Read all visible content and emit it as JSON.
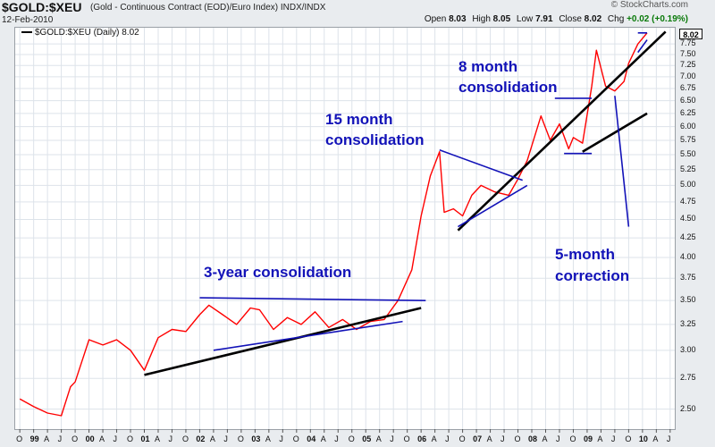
{
  "header": {
    "symbol": "$GOLD:$XEU",
    "description": "(Gold - Continuous Contract (EOD)/Euro Index)  INDX/INDX",
    "date": "12-Feb-2010",
    "brand": "© StockCharts.com",
    "open_label": "Open",
    "open": "8.03",
    "high_label": "High",
    "high": "8.05",
    "low_label": "Low",
    "low": "7.91",
    "close_label": "Close",
    "close": "8.02",
    "chg_label": "Chg",
    "chg": "+0.02 (+0.19%)"
  },
  "legend": {
    "label": "$GOLD:$XEU (Daily) 8.02"
  },
  "last_value_label": "8.02",
  "annotations": {
    "three_year": "3-year consolidation",
    "fifteen_month_1": "15 month",
    "fifteen_month_2": "consolidation",
    "eight_month_1": "8 month",
    "eight_month_2": "consolidation",
    "five_month_1": "5-month",
    "five_month_2": "correction"
  },
  "colors": {
    "price_line": "#ff0000",
    "trend_black": "#000000",
    "trend_blue": "#1212b8",
    "grid": "#dde3ea"
  },
  "chart_data": {
    "type": "line",
    "title": "$GOLD:$XEU (Daily)",
    "y_scale": "log",
    "ylim": [
      2.35,
      8.15
    ],
    "y_ticks": [
      "2.50",
      "2.75",
      "3.00",
      "3.25",
      "3.50",
      "3.75",
      "4.00",
      "4.25",
      "4.50",
      "4.75",
      "5.00",
      "5.25",
      "5.50",
      "5.75",
      "6.00",
      "6.25",
      "6.50",
      "6.75",
      "7.00",
      "7.25",
      "7.50",
      "7.75",
      "8.02"
    ],
    "x_ticks": [
      "O",
      "99",
      "A",
      "J",
      "O",
      "00",
      "A",
      "J",
      "O",
      "01",
      "A",
      "J",
      "O",
      "02",
      "A",
      "J",
      "O",
      "03",
      "A",
      "J",
      "O",
      "04",
      "A",
      "J",
      "O",
      "05",
      "A",
      "J",
      "O",
      "06",
      "A",
      "J",
      "O",
      "07",
      "A",
      "J",
      "O",
      "08",
      "A",
      "J",
      "O",
      "09",
      "A",
      "J",
      "O",
      "10",
      "A",
      "J"
    ],
    "grid": true,
    "series": [
      {
        "name": "$GOLD:$XEU (Daily) 8.02",
        "x": [
          "1998-10",
          "1999-01",
          "1999-04",
          "1999-07",
          "1999-09",
          "1999-10",
          "2000-01",
          "2000-04",
          "2000-07",
          "2000-10",
          "2001-01",
          "2001-04",
          "2001-07",
          "2001-10",
          "2002-01",
          "2002-03",
          "2002-06",
          "2002-09",
          "2002-12",
          "2003-02",
          "2003-05",
          "2003-08",
          "2003-11",
          "2004-02",
          "2004-05",
          "2004-08",
          "2004-11",
          "2005-02",
          "2005-05",
          "2005-08",
          "2005-11",
          "2006-01",
          "2006-03",
          "2006-05",
          "2006-06",
          "2006-08",
          "2006-10",
          "2006-12",
          "2007-02",
          "2007-05",
          "2007-08",
          "2007-10",
          "2007-12",
          "2008-03",
          "2008-05",
          "2008-07",
          "2008-09",
          "2008-10",
          "2008-12",
          "2009-02",
          "2009-03",
          "2009-05",
          "2009-07",
          "2009-09",
          "2009-10",
          "2009-12",
          "2010-02"
        ],
        "y": [
          2.58,
          2.52,
          2.47,
          2.45,
          2.68,
          2.72,
          3.1,
          3.05,
          3.1,
          3.0,
          2.82,
          3.12,
          3.2,
          3.18,
          3.35,
          3.45,
          3.35,
          3.25,
          3.42,
          3.4,
          3.2,
          3.32,
          3.25,
          3.38,
          3.22,
          3.3,
          3.2,
          3.28,
          3.3,
          3.5,
          3.85,
          4.55,
          5.15,
          5.55,
          4.6,
          4.65,
          4.55,
          4.85,
          5.0,
          4.9,
          4.85,
          5.1,
          5.4,
          6.2,
          5.75,
          6.05,
          5.6,
          5.8,
          5.7,
          6.8,
          7.6,
          6.8,
          6.7,
          6.9,
          7.3,
          7.75,
          8.02
        ]
      }
    ],
    "trendlines": [
      {
        "color": "black",
        "from": [
          "2001-01",
          2.78
        ],
        "to": [
          "2006-01",
          3.42
        ]
      },
      {
        "color": "black",
        "from": [
          "2006-09",
          4.35
        ],
        "to": [
          "2010-06",
          8.05
        ]
      },
      {
        "color": "black",
        "from": [
          "2008-12",
          5.55
        ],
        "to": [
          "2010-02",
          6.25
        ]
      },
      {
        "color": "blue",
        "from": [
          "2002-04",
          3.0
        ],
        "to": [
          "2005-09",
          3.28
        ]
      },
      {
        "color": "blue",
        "from": [
          "2002-01",
          3.53
        ],
        "to": [
          "2006-02",
          3.5
        ]
      },
      {
        "color": "blue",
        "from": [
          "2006-05",
          5.58
        ],
        "to": [
          "2007-11",
          5.08
        ]
      },
      {
        "color": "blue",
        "from": [
          "2006-09",
          4.4
        ],
        "to": [
          "2007-12",
          5.0
        ]
      },
      {
        "color": "blue",
        "from": [
          "2008-06",
          6.55
        ],
        "to": [
          "2009-02",
          6.55
        ]
      },
      {
        "color": "blue",
        "from": [
          "2008-08",
          5.52
        ],
        "to": [
          "2009-02",
          5.52
        ]
      },
      {
        "color": "blue",
        "from": [
          "2009-12",
          8.02
        ],
        "to": [
          "2010-02",
          8.02
        ]
      },
      {
        "color": "blue",
        "from": [
          "2009-12",
          7.55
        ],
        "to": [
          "2010-02",
          7.85
        ]
      },
      {
        "color": "blue",
        "from": [
          "2009-07",
          6.6
        ],
        "to": [
          "2009-10",
          4.4
        ]
      }
    ]
  }
}
